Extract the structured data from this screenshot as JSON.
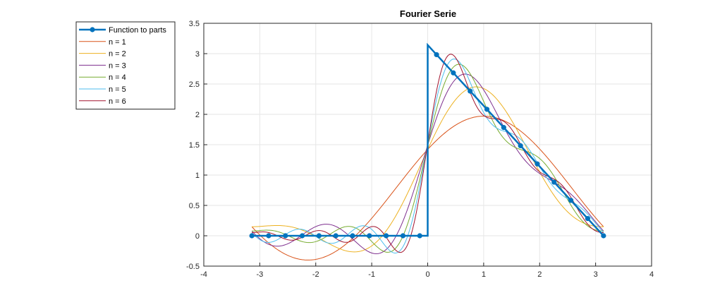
{
  "chart_data": {
    "type": "line",
    "title": "Fourier Serie",
    "xlabel": "",
    "ylabel": "",
    "xlim": [
      -4,
      4
    ],
    "ylim": [
      -0.5,
      3.5
    ],
    "x_ticks": [
      "-4",
      "-3",
      "-2",
      "-1",
      "0",
      "1",
      "2",
      "3",
      "4"
    ],
    "y_ticks": [
      "-0.5",
      "0",
      "0.5",
      "1",
      "1.5",
      "2",
      "2.5",
      "3",
      "3.5"
    ],
    "grid": true,
    "legend_position": "outside-top-left",
    "series": [
      {
        "name": "Function to parts",
        "color": "#0072BD",
        "style": "line-with-markers",
        "description_formula": "f(x) = 0 for x<0, f(x) = pi - x for x>=0",
        "line_points": [
          [
            -3.1416,
            0
          ],
          [
            0,
            0
          ],
          [
            0,
            3.1416
          ],
          [
            3.1416,
            0
          ]
        ],
        "markers": [
          [
            -3.1416,
            0
          ],
          [
            -2.8416,
            0
          ],
          [
            -2.5416,
            0
          ],
          [
            -2.2416,
            0
          ],
          [
            -1.9416,
            0
          ],
          [
            -1.6416,
            0
          ],
          [
            -1.3416,
            0
          ],
          [
            -1.0416,
            0
          ],
          [
            -0.7416,
            0
          ],
          [
            -0.4416,
            0
          ],
          [
            -0.1416,
            0
          ],
          [
            0.1584,
            2.9832
          ],
          [
            0.4584,
            2.6832
          ],
          [
            0.7584,
            2.3832
          ],
          [
            1.0584,
            2.0832
          ],
          [
            1.3584,
            1.7832
          ],
          [
            1.6584,
            1.4832
          ],
          [
            1.9584,
            1.1832
          ],
          [
            2.2584,
            0.8832
          ],
          [
            2.5584,
            0.5832
          ],
          [
            2.8584,
            0.2832
          ],
          [
            3.1416,
            0
          ]
        ]
      },
      {
        "name": "n = 1",
        "n": 1,
        "color": "#D95319"
      },
      {
        "name": "n = 2",
        "n": 2,
        "color": "#EDB120"
      },
      {
        "name": "n = 3",
        "n": 3,
        "color": "#7E2F8E"
      },
      {
        "name": "n = 4",
        "n": 4,
        "color": "#77AC30"
      },
      {
        "name": "n = 5",
        "n": 5,
        "color": "#4DBEEE"
      },
      {
        "name": "n = 6",
        "n": 6,
        "color": "#A2142F"
      }
    ]
  }
}
